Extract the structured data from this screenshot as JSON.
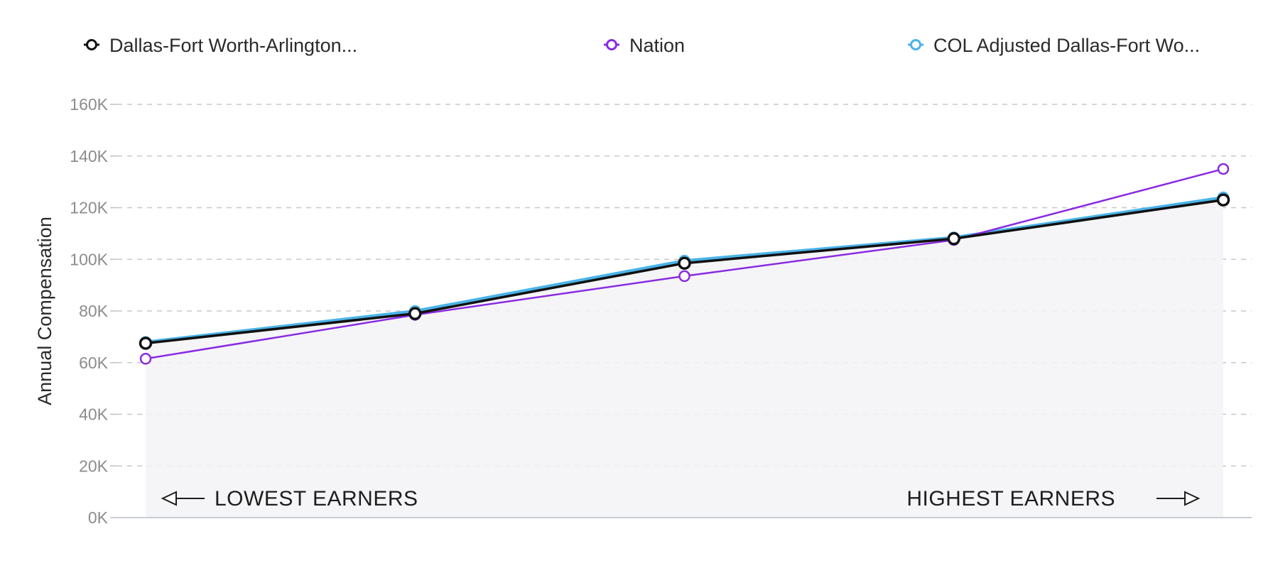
{
  "chart_data": {
    "type": "line",
    "title": "",
    "xlabel": "",
    "ylabel": "Annual Compensation",
    "ylim": [
      0,
      160000
    ],
    "yticks": [
      0,
      20000,
      40000,
      60000,
      80000,
      100000,
      120000,
      140000,
      160000
    ],
    "ytick_labels": [
      "0K",
      "20K",
      "40K",
      "60K",
      "80K",
      "100K",
      "120K",
      "140K",
      "160K"
    ],
    "x": [
      1,
      2,
      3,
      4,
      5
    ],
    "grid": true,
    "legend": "top",
    "series": [
      {
        "name": "Dallas-Fort Worth-Arlington...",
        "color": "#111111",
        "values": [
          67500,
          79000,
          98500,
          108000,
          123000
        ]
      },
      {
        "name": "Nation",
        "color": "#8a2be2",
        "values": [
          61500,
          78500,
          93500,
          107500,
          135000
        ]
      },
      {
        "name": "COL Adjusted Dallas-Fort Wo...",
        "color": "#4ab3e8",
        "values": [
          68000,
          80000,
          99500,
          108500,
          124000
        ]
      }
    ],
    "annotations": {
      "left": "LOWEST EARNERS",
      "right": "HIGHEST EARNERS"
    }
  }
}
